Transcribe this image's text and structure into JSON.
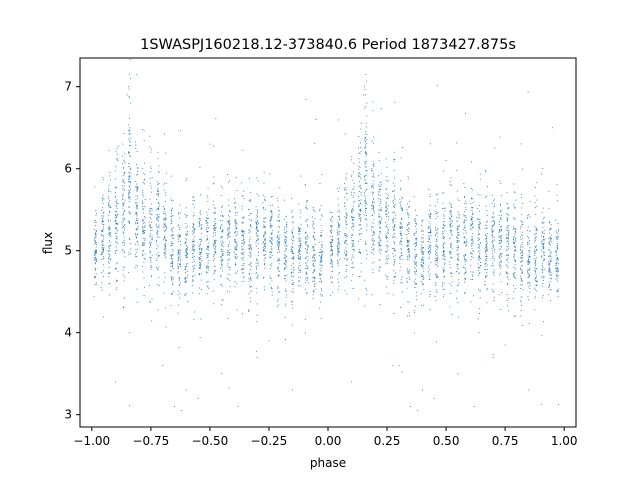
{
  "chart_data": {
    "type": "scatter",
    "title": "1SWASPJ160218.12-373840.6 Period 1873427.875s",
    "xlabel": "phase",
    "ylabel": "flux",
    "xlim": [
      -1.05,
      1.05
    ],
    "ylim": [
      2.85,
      7.35
    ],
    "x_ticks": [
      -1.0,
      -0.75,
      -0.5,
      -0.25,
      0.0,
      0.25,
      0.5,
      0.75,
      1.0
    ],
    "x_tick_labels": [
      "−1.00",
      "−0.75",
      "−0.50",
      "−0.25",
      "0.00",
      "0.25",
      "0.50",
      "0.75",
      "1.00"
    ],
    "y_ticks": [
      3,
      4,
      5,
      6,
      7
    ],
    "y_tick_labels": [
      "3",
      "4",
      "5",
      "6",
      "7"
    ],
    "grid": false,
    "marker_color": "#1f77b4",
    "series": [
      {
        "clusters": [
          {
            "x_center": -0.985,
            "x_width": 0.01,
            "y_mean": 5.05,
            "y_sd": 0.22,
            "n": 70
          },
          {
            "x_center": -0.955,
            "x_width": 0.012,
            "y_mean": 5.15,
            "y_sd": 0.3,
            "n": 70
          },
          {
            "x_center": -0.925,
            "x_width": 0.012,
            "y_mean": 5.25,
            "y_sd": 0.32,
            "n": 70
          },
          {
            "x_center": -0.895,
            "x_width": 0.012,
            "y_mean": 5.35,
            "y_sd": 0.35,
            "n": 75
          },
          {
            "x_center": -0.865,
            "x_width": 0.012,
            "y_mean": 5.55,
            "y_sd": 0.4,
            "n": 80
          },
          {
            "x_center": -0.84,
            "x_width": 0.01,
            "y_mean": 5.85,
            "y_sd": 0.55,
            "n": 90
          },
          {
            "x_center": -0.81,
            "x_width": 0.012,
            "y_mean": 5.45,
            "y_sd": 0.38,
            "n": 80
          },
          {
            "x_center": -0.78,
            "x_width": 0.012,
            "y_mean": 5.35,
            "y_sd": 0.35,
            "n": 75
          },
          {
            "x_center": -0.75,
            "x_width": 0.012,
            "y_mean": 5.25,
            "y_sd": 0.33,
            "n": 70
          },
          {
            "x_center": -0.72,
            "x_width": 0.012,
            "y_mean": 5.3,
            "y_sd": 0.35,
            "n": 75
          },
          {
            "x_center": -0.69,
            "x_width": 0.012,
            "y_mean": 5.2,
            "y_sd": 0.32,
            "n": 70
          },
          {
            "x_center": -0.66,
            "x_width": 0.012,
            "y_mean": 5.05,
            "y_sd": 0.35,
            "n": 75
          },
          {
            "x_center": -0.63,
            "x_width": 0.012,
            "y_mean": 5.0,
            "y_sd": 0.3,
            "n": 70
          },
          {
            "x_center": -0.6,
            "x_width": 0.012,
            "y_mean": 4.95,
            "y_sd": 0.3,
            "n": 70
          },
          {
            "x_center": -0.57,
            "x_width": 0.012,
            "y_mean": 5.05,
            "y_sd": 0.28,
            "n": 70
          },
          {
            "x_center": -0.54,
            "x_width": 0.012,
            "y_mean": 5.0,
            "y_sd": 0.3,
            "n": 70
          },
          {
            "x_center": -0.51,
            "x_width": 0.012,
            "y_mean": 5.05,
            "y_sd": 0.3,
            "n": 70
          },
          {
            "x_center": -0.48,
            "x_width": 0.012,
            "y_mean": 5.1,
            "y_sd": 0.3,
            "n": 70
          },
          {
            "x_center": -0.45,
            "x_width": 0.012,
            "y_mean": 5.05,
            "y_sd": 0.28,
            "n": 70
          },
          {
            "x_center": -0.42,
            "x_width": 0.012,
            "y_mean": 5.1,
            "y_sd": 0.28,
            "n": 70
          },
          {
            "x_center": -0.39,
            "x_width": 0.012,
            "y_mean": 5.15,
            "y_sd": 0.28,
            "n": 70
          },
          {
            "x_center": -0.36,
            "x_width": 0.012,
            "y_mean": 5.1,
            "y_sd": 0.3,
            "n": 70
          },
          {
            "x_center": -0.33,
            "x_width": 0.012,
            "y_mean": 5.0,
            "y_sd": 0.32,
            "n": 70
          },
          {
            "x_center": -0.3,
            "x_width": 0.012,
            "y_mean": 5.1,
            "y_sd": 0.3,
            "n": 70
          },
          {
            "x_center": -0.27,
            "x_width": 0.012,
            "y_mean": 5.15,
            "y_sd": 0.28,
            "n": 70
          },
          {
            "x_center": -0.24,
            "x_width": 0.012,
            "y_mean": 5.1,
            "y_sd": 0.3,
            "n": 70
          },
          {
            "x_center": -0.21,
            "x_width": 0.012,
            "y_mean": 5.0,
            "y_sd": 0.3,
            "n": 70
          },
          {
            "x_center": -0.18,
            "x_width": 0.012,
            "y_mean": 4.95,
            "y_sd": 0.28,
            "n": 70
          },
          {
            "x_center": -0.15,
            "x_width": 0.012,
            "y_mean": 4.9,
            "y_sd": 0.28,
            "n": 70
          },
          {
            "x_center": -0.12,
            "x_width": 0.012,
            "y_mean": 5.0,
            "y_sd": 0.28,
            "n": 70
          },
          {
            "x_center": -0.09,
            "x_width": 0.012,
            "y_mean": 5.05,
            "y_sd": 0.28,
            "n": 70
          },
          {
            "x_center": -0.06,
            "x_width": 0.012,
            "y_mean": 4.95,
            "y_sd": 0.28,
            "n": 70
          },
          {
            "x_center": -0.03,
            "x_width": 0.012,
            "y_mean": 4.9,
            "y_sd": 0.25,
            "n": 70
          },
          {
            "x_center": 0.015,
            "x_width": 0.01,
            "y_mean": 5.05,
            "y_sd": 0.22,
            "n": 70
          },
          {
            "x_center": 0.045,
            "x_width": 0.012,
            "y_mean": 5.15,
            "y_sd": 0.3,
            "n": 70
          },
          {
            "x_center": 0.075,
            "x_width": 0.012,
            "y_mean": 5.25,
            "y_sd": 0.32,
            "n": 70
          },
          {
            "x_center": 0.105,
            "x_width": 0.012,
            "y_mean": 5.35,
            "y_sd": 0.35,
            "n": 75
          },
          {
            "x_center": 0.135,
            "x_width": 0.012,
            "y_mean": 5.55,
            "y_sd": 0.4,
            "n": 80
          },
          {
            "x_center": 0.16,
            "x_width": 0.01,
            "y_mean": 5.85,
            "y_sd": 0.55,
            "n": 90
          },
          {
            "x_center": 0.19,
            "x_width": 0.012,
            "y_mean": 5.45,
            "y_sd": 0.38,
            "n": 80
          },
          {
            "x_center": 0.22,
            "x_width": 0.012,
            "y_mean": 5.35,
            "y_sd": 0.35,
            "n": 75
          },
          {
            "x_center": 0.25,
            "x_width": 0.012,
            "y_mean": 5.25,
            "y_sd": 0.33,
            "n": 70
          },
          {
            "x_center": 0.28,
            "x_width": 0.012,
            "y_mean": 5.3,
            "y_sd": 0.35,
            "n": 75
          },
          {
            "x_center": 0.31,
            "x_width": 0.012,
            "y_mean": 5.2,
            "y_sd": 0.32,
            "n": 70
          },
          {
            "x_center": 0.34,
            "x_width": 0.012,
            "y_mean": 5.05,
            "y_sd": 0.35,
            "n": 75
          },
          {
            "x_center": 0.37,
            "x_width": 0.012,
            "y_mean": 5.0,
            "y_sd": 0.3,
            "n": 70
          },
          {
            "x_center": 0.4,
            "x_width": 0.012,
            "y_mean": 4.95,
            "y_sd": 0.3,
            "n": 70
          },
          {
            "x_center": 0.43,
            "x_width": 0.012,
            "y_mean": 5.05,
            "y_sd": 0.28,
            "n": 70
          },
          {
            "x_center": 0.46,
            "x_width": 0.012,
            "y_mean": 5.0,
            "y_sd": 0.3,
            "n": 70
          },
          {
            "x_center": 0.49,
            "x_width": 0.012,
            "y_mean": 5.05,
            "y_sd": 0.3,
            "n": 70
          },
          {
            "x_center": 0.52,
            "x_width": 0.012,
            "y_mean": 5.1,
            "y_sd": 0.3,
            "n": 70
          },
          {
            "x_center": 0.55,
            "x_width": 0.012,
            "y_mean": 5.05,
            "y_sd": 0.28,
            "n": 70
          },
          {
            "x_center": 0.58,
            "x_width": 0.012,
            "y_mean": 5.1,
            "y_sd": 0.28,
            "n": 70
          },
          {
            "x_center": 0.61,
            "x_width": 0.012,
            "y_mean": 5.15,
            "y_sd": 0.28,
            "n": 70
          },
          {
            "x_center": 0.64,
            "x_width": 0.012,
            "y_mean": 5.1,
            "y_sd": 0.3,
            "n": 70
          },
          {
            "x_center": 0.67,
            "x_width": 0.012,
            "y_mean": 5.0,
            "y_sd": 0.32,
            "n": 70
          },
          {
            "x_center": 0.7,
            "x_width": 0.012,
            "y_mean": 5.1,
            "y_sd": 0.3,
            "n": 70
          },
          {
            "x_center": 0.73,
            "x_width": 0.012,
            "y_mean": 5.15,
            "y_sd": 0.28,
            "n": 70
          },
          {
            "x_center": 0.76,
            "x_width": 0.012,
            "y_mean": 5.1,
            "y_sd": 0.3,
            "n": 70
          },
          {
            "x_center": 0.79,
            "x_width": 0.012,
            "y_mean": 5.0,
            "y_sd": 0.3,
            "n": 70
          },
          {
            "x_center": 0.82,
            "x_width": 0.012,
            "y_mean": 4.95,
            "y_sd": 0.28,
            "n": 70
          },
          {
            "x_center": 0.85,
            "x_width": 0.012,
            "y_mean": 4.9,
            "y_sd": 0.28,
            "n": 70
          },
          {
            "x_center": 0.88,
            "x_width": 0.012,
            "y_mean": 5.0,
            "y_sd": 0.28,
            "n": 70
          },
          {
            "x_center": 0.91,
            "x_width": 0.012,
            "y_mean": 5.05,
            "y_sd": 0.28,
            "n": 70
          },
          {
            "x_center": 0.94,
            "x_width": 0.012,
            "y_mean": 4.95,
            "y_sd": 0.28,
            "n": 70
          },
          {
            "x_center": 0.97,
            "x_width": 0.012,
            "y_mean": 4.9,
            "y_sd": 0.25,
            "n": 70
          }
        ],
        "outliers": [
          [
            -0.84,
            7.15
          ],
          [
            -0.845,
            7.0
          ],
          [
            -0.835,
            6.8
          ],
          [
            -0.85,
            6.9
          ],
          [
            0.16,
            7.15
          ],
          [
            0.155,
            7.0
          ],
          [
            0.165,
            6.8
          ],
          [
            0.15,
            6.9
          ],
          [
            -0.62,
            3.05
          ],
          [
            -0.65,
            3.1
          ],
          [
            -0.6,
            3.3
          ],
          [
            -0.55,
            3.2
          ],
          [
            -0.38,
            3.1
          ],
          [
            -0.15,
            3.3
          ],
          [
            -0.45,
            3.5
          ],
          [
            0.38,
            3.05
          ],
          [
            0.35,
            3.1
          ],
          [
            0.4,
            3.3
          ],
          [
            0.45,
            3.2
          ],
          [
            0.62,
            3.1
          ],
          [
            0.85,
            3.3
          ],
          [
            0.55,
            3.5
          ],
          [
            -0.9,
            3.4
          ],
          [
            0.1,
            3.4
          ],
          [
            -0.7,
            3.6
          ],
          [
            0.3,
            3.6
          ],
          [
            -0.3,
            3.7
          ],
          [
            0.7,
            3.7
          ],
          [
            -0.05,
            6.6
          ],
          [
            0.95,
            6.5
          ],
          [
            -0.72,
            6.2
          ],
          [
            0.28,
            6.2
          ],
          [
            -0.5,
            6.3
          ],
          [
            0.5,
            6.1
          ],
          [
            -0.25,
            3.9
          ],
          [
            0.75,
            3.85
          ]
        ]
      }
    ]
  }
}
